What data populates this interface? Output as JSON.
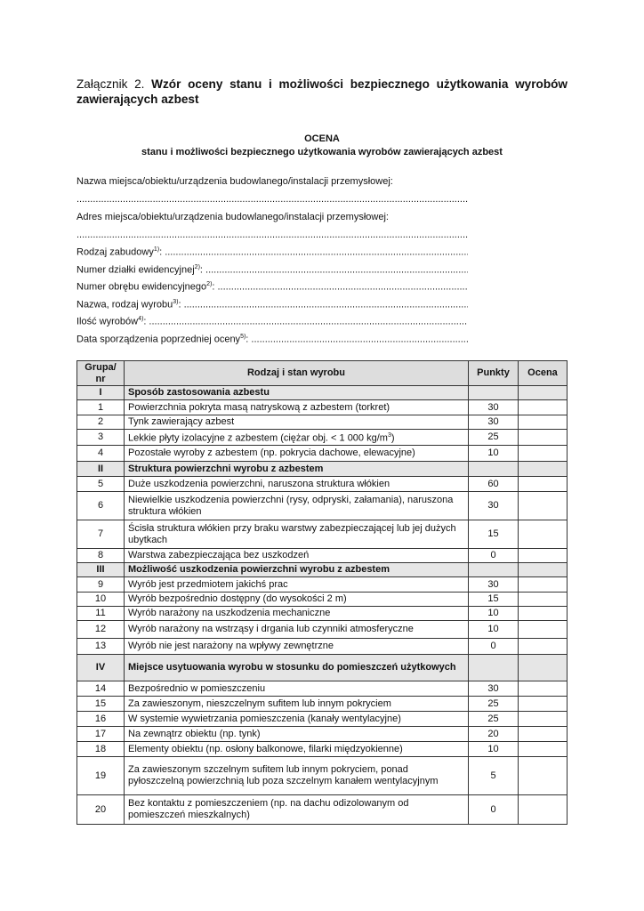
{
  "title": {
    "prefix": "Załącznik 2.",
    "bold": "Wzór oceny stanu i możliwości bezpiecznego użytkowania wyrobów zawierających azbest"
  },
  "heading": {
    "main": "OCENA",
    "sub": "stanu i możliwości bezpiecznego użytkowania wyrobów zawierających azbest"
  },
  "fields": [
    {
      "label": "Nazwa miejsca/obiektu/urządzenia budowlanego/instalacji przemysłowej:",
      "note": ""
    },
    {
      "label": "",
      "note": "",
      "dots": true
    },
    {
      "label": "Adres miejsca/obiektu/urządzenia budowlanego/instalacji przemysłowej:",
      "note": ""
    },
    {
      "label": "",
      "note": "",
      "dots": true
    },
    {
      "label": "Rodzaj zabudowy",
      "note": "1)",
      "dots": true
    },
    {
      "label": "Numer działki ewidencyjnej",
      "note": "2)",
      "dots": true
    },
    {
      "label": "Numer obrębu ewidencyjnego",
      "note": "2)",
      "dots": true
    },
    {
      "label": "Nazwa, rodzaj wyrobu",
      "note": "3)",
      "dots": true
    },
    {
      "label": "Ilość wyrobów",
      "note": "4)",
      "dots": true
    },
    {
      "label": "Data sporządzenia poprzedniej oceny",
      "note": "5)",
      "dots": true
    }
  ],
  "table": {
    "headers": [
      "Grupa/ nr",
      "Rodzaj i stan wyrobu",
      "Punkty",
      "Ocena"
    ],
    "rows": [
      {
        "nr": "I",
        "text": "Sposób zastosowania azbestu",
        "points": "",
        "group": true
      },
      {
        "nr": "1",
        "text": "Powierzchnia pokryta masą natryskową z azbestem (torkret)",
        "points": "30"
      },
      {
        "nr": "2",
        "text": "Tynk zawierający azbest",
        "points": "30"
      },
      {
        "nr": "3",
        "text": "Lekkie płyty izolacyjne z azbestem (ciężar obj. < 1 000 kg/m",
        "sup": "3",
        "after": ")",
        "points": "25"
      },
      {
        "nr": "4",
        "text": "Pozostałe wyroby z azbestem (np. pokrycia dachowe, elewacyjne)",
        "points": "10"
      },
      {
        "nr": "II",
        "text": "Struktura powierzchni wyrobu z azbestem",
        "points": "",
        "group": true
      },
      {
        "nr": "5",
        "text": "Duże uszkodzenia powierzchni, naruszona struktura włókien",
        "points": "60"
      },
      {
        "nr": "6",
        "text": "Niewielkie uszkodzenia powierzchni (rysy, odpryski, załamania), naruszona struktura włókien",
        "points": "30"
      },
      {
        "nr": "7",
        "text": "Ścisła struktura włókien przy braku warstwy zabezpieczającej lub jej dużych ubytkach",
        "points": "15"
      },
      {
        "nr": "8",
        "text": "Warstwa zabezpieczająca bez uszkodzeń",
        "points": "0"
      },
      {
        "nr": "III",
        "text": "Możliwość uszkodzenia powierzchni wyrobu z azbestem",
        "points": "",
        "group": true
      },
      {
        "nr": "9",
        "text": "Wyrób jest przedmiotem jakichś prac",
        "points": "30"
      },
      {
        "nr": "10",
        "text": "Wyrób bezpośrednio dostępny (do wysokości 2 m)",
        "points": "15"
      },
      {
        "nr": "11",
        "text": "Wyrób narażony na uszkodzenia mechaniczne",
        "points": "10"
      },
      {
        "nr": "12",
        "text": "Wyrób narażony na wstrząsy i drgania lub czynniki atmosferyczne",
        "points": "10"
      },
      {
        "nr": "13",
        "text": "Wyrób nie jest narażony na wpływy zewnętrzne",
        "points": "0"
      },
      {
        "nr": "IV",
        "text": "Miejsce usytuowania wyrobu w stosunku do pomieszczeń użytkowych",
        "points": "",
        "group": true
      },
      {
        "nr": "14",
        "text": "Bezpośrednio w pomieszczeniu",
        "points": "30"
      },
      {
        "nr": "15",
        "text": "Za zawieszonym, nieszczelnym sufitem lub innym pokryciem",
        "points": "25"
      },
      {
        "nr": "16",
        "text": "W systemie wywietrzania pomieszczenia (kanały wentylacyjne)",
        "points": "25"
      },
      {
        "nr": "17",
        "text": "Na zewnątrz obiektu (np. tynk)",
        "points": "20"
      },
      {
        "nr": "18",
        "text": "Elementy obiektu (np. osłony balkonowe, filarki międzyokienne)",
        "points": "10"
      },
      {
        "nr": "19",
        "text": "Za zawieszonym szczelnym sufitem lub innym pokryciem, ponad pyłoszczelną powierzchnią lub poza szczelnym kanałem wentylacyjnym",
        "points": "5"
      },
      {
        "nr": "20",
        "text": "Bez kontaktu z pomieszczeniem (np. na dachu odizolowanym od pomieszczeń mieszkalnych)",
        "points": "0"
      }
    ]
  }
}
